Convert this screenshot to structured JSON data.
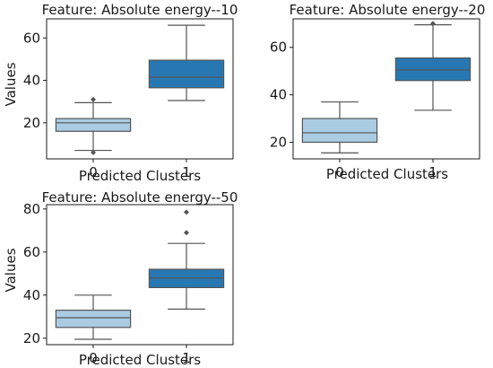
{
  "colors": {
    "cluster_0": "#a9cce3",
    "cluster_1": "#2778b2",
    "line": "#555555",
    "frame": "#1a1a1a"
  },
  "chart_data": [
    {
      "type": "box",
      "title": "Feature: Absolute energy--10",
      "xlabel": "Predicted Clusters",
      "ylabel": "Values",
      "categories": [
        "0",
        "1"
      ],
      "ylim": [
        3,
        69
      ],
      "yticks": [
        20,
        40,
        60
      ],
      "boxes": [
        {
          "category": "0",
          "whisker_low": 7,
          "q1": 16,
          "median": 20,
          "q3": 22,
          "whisker_high": 29.5,
          "outliers": [
            6,
            31
          ]
        },
        {
          "category": "1",
          "whisker_low": 30.5,
          "q1": 36.5,
          "median": 41.5,
          "q3": 49.5,
          "whisker_high": 66,
          "outliers": []
        }
      ]
    },
    {
      "type": "box",
      "title": "Feature: Absolute energy--20",
      "xlabel": "Predicted Clusters",
      "ylabel": "",
      "categories": [
        "0",
        "1"
      ],
      "ylim": [
        13,
        72
      ],
      "yticks": [
        20,
        40,
        60
      ],
      "boxes": [
        {
          "category": "0",
          "whisker_low": 15.5,
          "q1": 20,
          "median": 24,
          "q3": 30,
          "whisker_high": 37,
          "outliers": []
        },
        {
          "category": "1",
          "whisker_low": 33.5,
          "q1": 46,
          "median": 50.5,
          "q3": 55.5,
          "whisker_high": 69.5,
          "outliers": [
            70
          ]
        }
      ]
    },
    {
      "type": "box",
      "title": "Feature: Absolute energy--50",
      "xlabel": "Predicted Clusters",
      "ylabel": "Values",
      "categories": [
        "0",
        "1"
      ],
      "ylim": [
        17,
        82
      ],
      "yticks": [
        20,
        40,
        60,
        80
      ],
      "boxes": [
        {
          "category": "0",
          "whisker_low": 19.5,
          "q1": 25,
          "median": 29.5,
          "q3": 33,
          "whisker_high": 40,
          "outliers": []
        },
        {
          "category": "1",
          "whisker_low": 33.5,
          "q1": 43.5,
          "median": 48,
          "q3": 52,
          "whisker_high": 64,
          "outliers": [
            69,
            78.5
          ]
        }
      ]
    }
  ]
}
